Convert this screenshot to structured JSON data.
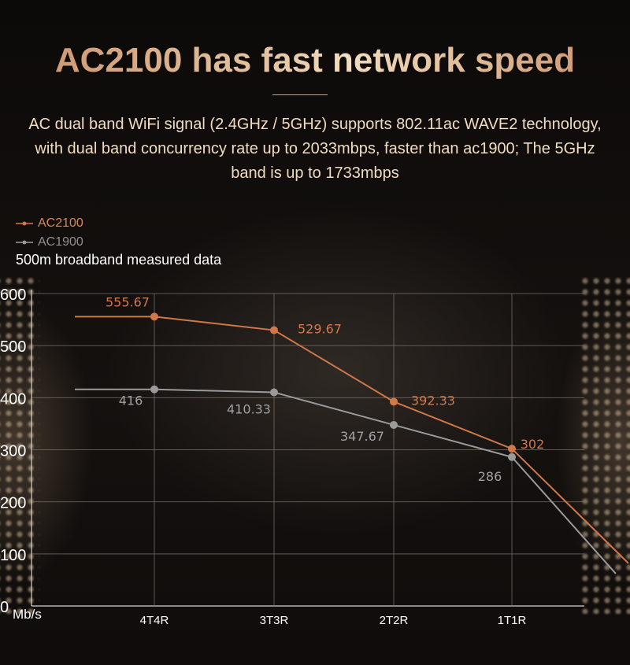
{
  "header": {
    "title": "AC2100 has fast network speed",
    "subtitle": "AC dual band WiFi signal (2.4GHz / 5GHz) supports 802.11ac WAVE2 technology, with dual band concurrency rate up to 2033mbps, faster than ac1900; The 5GHz band is up to 1733mbps",
    "note": "500m broadband measured data"
  },
  "colors": {
    "ac2100": "#d07848",
    "ac1900": "#9a9a9a",
    "grid": "#7a7068"
  },
  "chart_data": {
    "type": "line",
    "categories": [
      "4T4R",
      "3T3R",
      "2T2R",
      "1T1R"
    ],
    "ylim": [
      0,
      600
    ],
    "yticks": [
      0,
      100,
      200,
      300,
      400,
      500,
      600
    ],
    "ytick_labels": [
      "0",
      "100",
      "200",
      "300",
      "400",
      "500",
      "600"
    ],
    "yunit": "Mb/s",
    "legend_position": "top-left",
    "grid": true,
    "series": [
      {
        "name": "AC2100",
        "values": [
          555.67,
          529.67,
          392.33,
          302
        ],
        "labels": [
          "555.67",
          "529.67",
          "392.33",
          "302"
        ]
      },
      {
        "name": "AC1900",
        "values": [
          416,
          410.33,
          347.67,
          286
        ],
        "labels": [
          "416",
          "410.33",
          "347.67",
          "286"
        ]
      }
    ]
  }
}
